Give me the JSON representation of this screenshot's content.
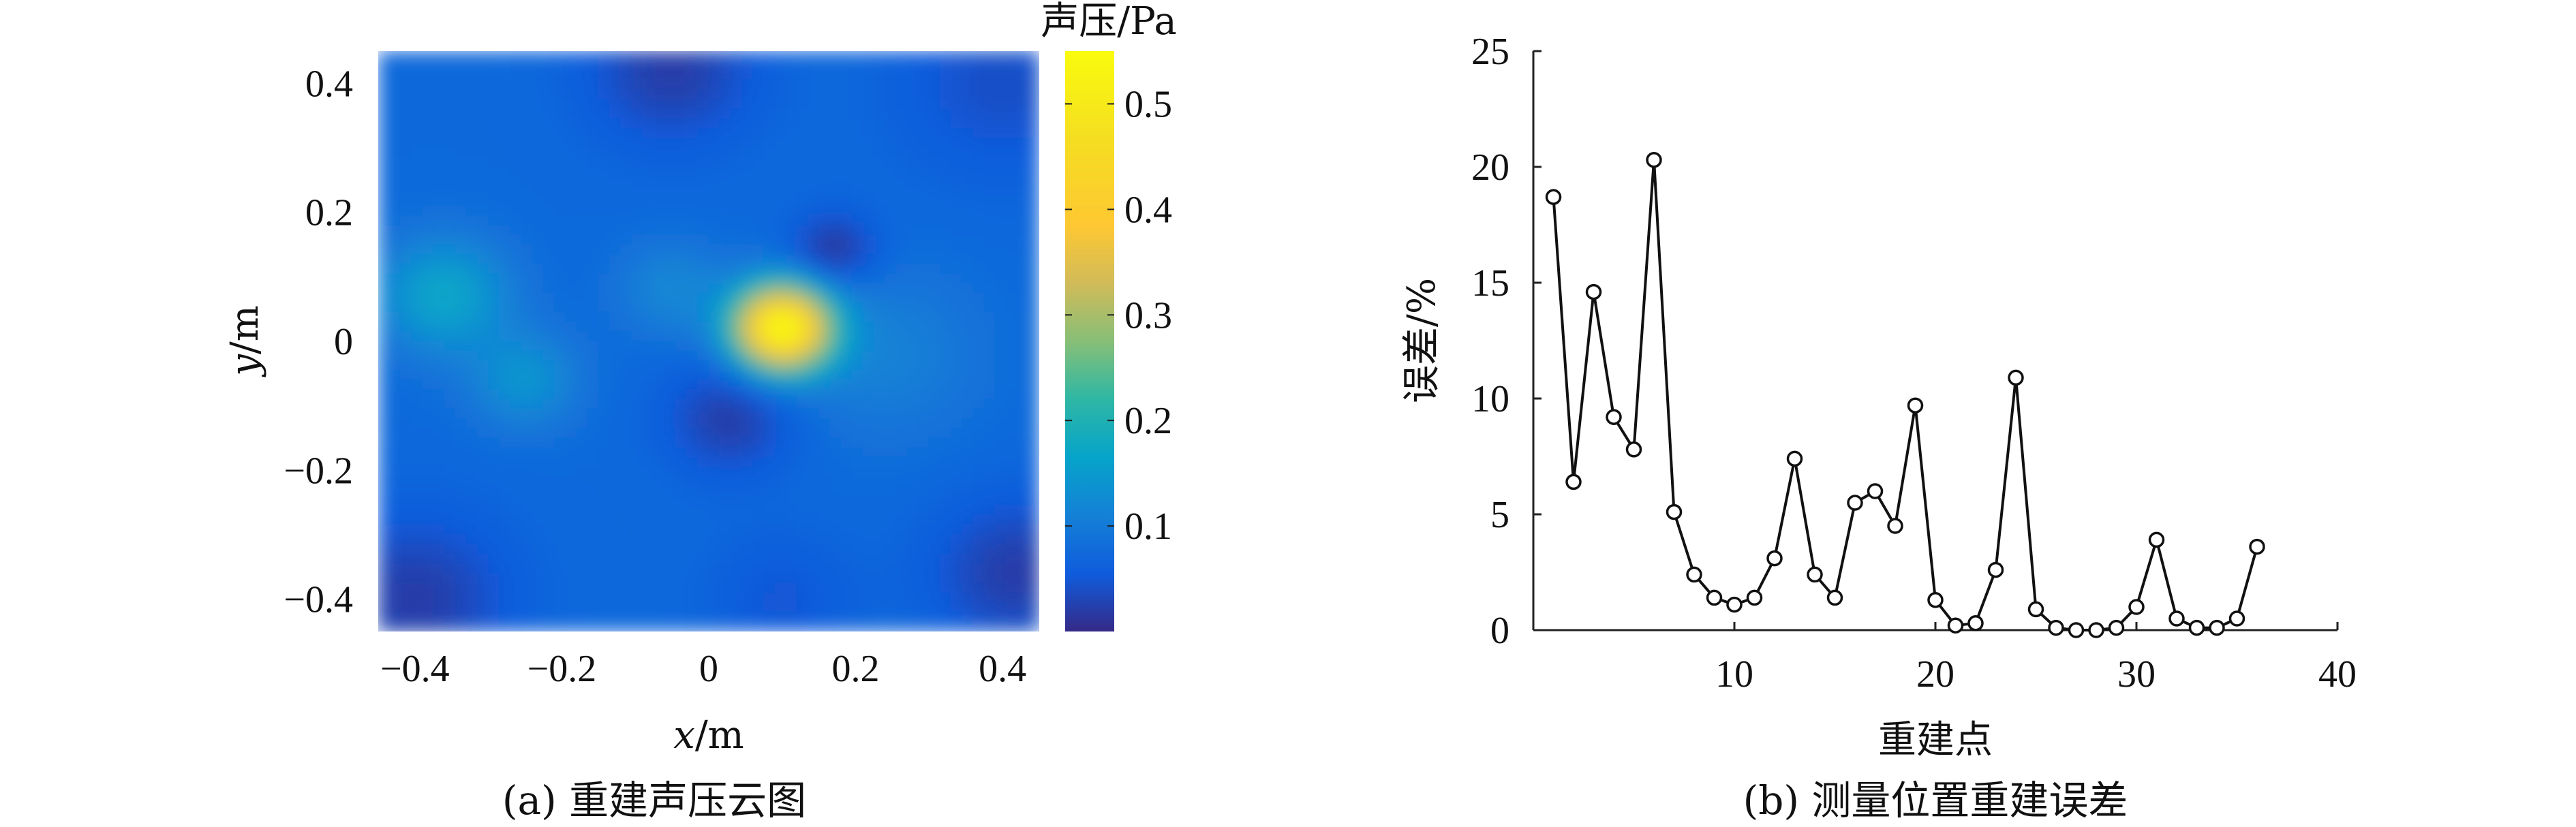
{
  "chart_data": [
    {
      "type": "heatmap",
      "title": "",
      "caption": "(a) 重建声压云图",
      "xlabel_var": "x",
      "xlabel_unit": "/m",
      "ylabel_var": "y",
      "ylabel_unit": "/m",
      "xlim": [
        -0.45,
        0.45
      ],
      "ylim": [
        -0.45,
        0.45
      ],
      "x_ticks": [
        -0.4,
        -0.2,
        0,
        0.2,
        0.4
      ],
      "x_tick_labels": [
        "−0.4",
        "−0.2",
        "0",
        "0.2",
        "0.4"
      ],
      "y_ticks": [
        0.4,
        0.2,
        0,
        -0.2,
        -0.4
      ],
      "y_tick_labels": [
        "0.4",
        "0.2",
        "0",
        "−0.2",
        "−0.4"
      ],
      "colorbar": {
        "label": "声压/Pa",
        "range": [
          0.0,
          0.55
        ],
        "ticks": [
          0.1,
          0.2,
          0.3,
          0.4,
          0.5
        ],
        "tick_labels": [
          "0.1",
          "0.2",
          "0.3",
          "0.4",
          "0.5"
        ],
        "colormap": "parula"
      },
      "base_value": 0.075,
      "features": [
        {
          "x": 0.1,
          "y": 0.02,
          "value": 0.55,
          "spread": 0.045
        },
        {
          "x": -0.36,
          "y": 0.07,
          "value": 0.17,
          "spread": 0.06
        },
        {
          "x": -0.25,
          "y": -0.06,
          "value": 0.14,
          "spread": 0.05
        },
        {
          "x": -0.05,
          "y": 0.08,
          "value": 0.12,
          "spread": 0.05
        },
        {
          "x": 0.24,
          "y": -0.02,
          "value": 0.11,
          "spread": 0.09
        },
        {
          "x": 0.17,
          "y": 0.14,
          "value": 0.01,
          "spread": 0.04
        },
        {
          "x": 0.03,
          "y": -0.12,
          "value": 0.02,
          "spread": 0.06
        },
        {
          "x": -0.05,
          "y": 0.42,
          "value": 0.02,
          "spread": 0.08
        },
        {
          "x": -0.4,
          "y": -0.4,
          "value": 0.02,
          "spread": 0.09
        },
        {
          "x": 0.42,
          "y": -0.36,
          "value": 0.02,
          "spread": 0.08
        },
        {
          "x": 0.4,
          "y": 0.4,
          "value": 0.04,
          "spread": 0.1
        },
        {
          "x": 0.1,
          "y": -0.4,
          "value": 0.05,
          "spread": 0.07
        }
      ]
    },
    {
      "type": "line",
      "title": "",
      "caption": "(b) 测量位置重建误差",
      "xlabel": "重建点",
      "ylabel": "误差/%",
      "xlim": [
        0,
        40
      ],
      "ylim": [
        0,
        25
      ],
      "x_ticks": [
        10,
        20,
        30,
        40
      ],
      "y_ticks": [
        0,
        5,
        10,
        15,
        20,
        25
      ],
      "marker": "circle",
      "x": [
        1,
        2,
        3,
        4,
        5,
        6,
        7,
        8,
        9,
        10,
        11,
        12,
        13,
        14,
        15,
        16,
        17,
        18,
        19,
        20,
        21,
        22,
        23,
        24,
        25,
        26,
        27,
        28,
        29,
        30,
        31,
        32,
        33,
        34,
        35,
        36
      ],
      "y": [
        18.7,
        6.4,
        14.6,
        9.2,
        7.8,
        20.3,
        5.1,
        2.4,
        1.4,
        1.1,
        1.4,
        3.1,
        7.4,
        2.4,
        1.4,
        5.5,
        6.0,
        4.5,
        9.7,
        1.3,
        0.2,
        0.3,
        2.6,
        10.9,
        0.9,
        0.1,
        0.0,
        0.0,
        0.1,
        1.0,
        3.9,
        0.5,
        0.1,
        0.1,
        0.5,
        3.6
      ]
    }
  ]
}
